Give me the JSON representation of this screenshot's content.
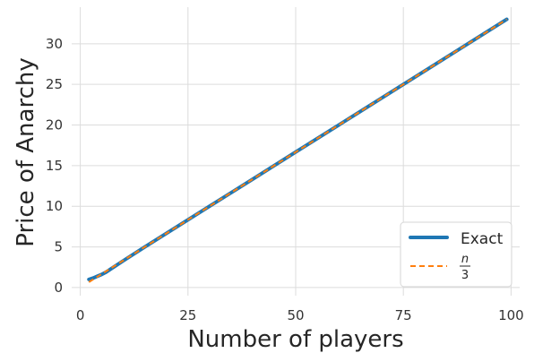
{
  "chart_data": {
    "type": "line",
    "xlabel": "Number of players",
    "ylabel": "Price of Anarchy",
    "xlim": [
      -2,
      102
    ],
    "ylim": [
      -1,
      34.5
    ],
    "xticks": [
      0,
      25,
      50,
      75,
      100
    ],
    "yticks": [
      0,
      5,
      10,
      15,
      20,
      25,
      30
    ],
    "grid": true,
    "legend_position": "lower-right",
    "series": [
      {
        "name": "Exact",
        "color": "#1f77b4",
        "style": "solid",
        "x": [
          2,
          3,
          4,
          5,
          6,
          8,
          10,
          15,
          20,
          30,
          40,
          50,
          60,
          70,
          80,
          90,
          99
        ],
        "y": [
          1.0,
          1.17,
          1.4,
          1.62,
          1.9,
          2.6,
          3.3,
          5.0,
          6.67,
          10.0,
          13.33,
          16.67,
          20.0,
          23.33,
          26.67,
          30.0,
          33.0
        ]
      },
      {
        "name_numerator": "n",
        "name_denominator": "3",
        "color": "#ff7f0e",
        "style": "dashed",
        "x": [
          2,
          99
        ],
        "y": [
          0.67,
          33.0
        ]
      }
    ]
  }
}
